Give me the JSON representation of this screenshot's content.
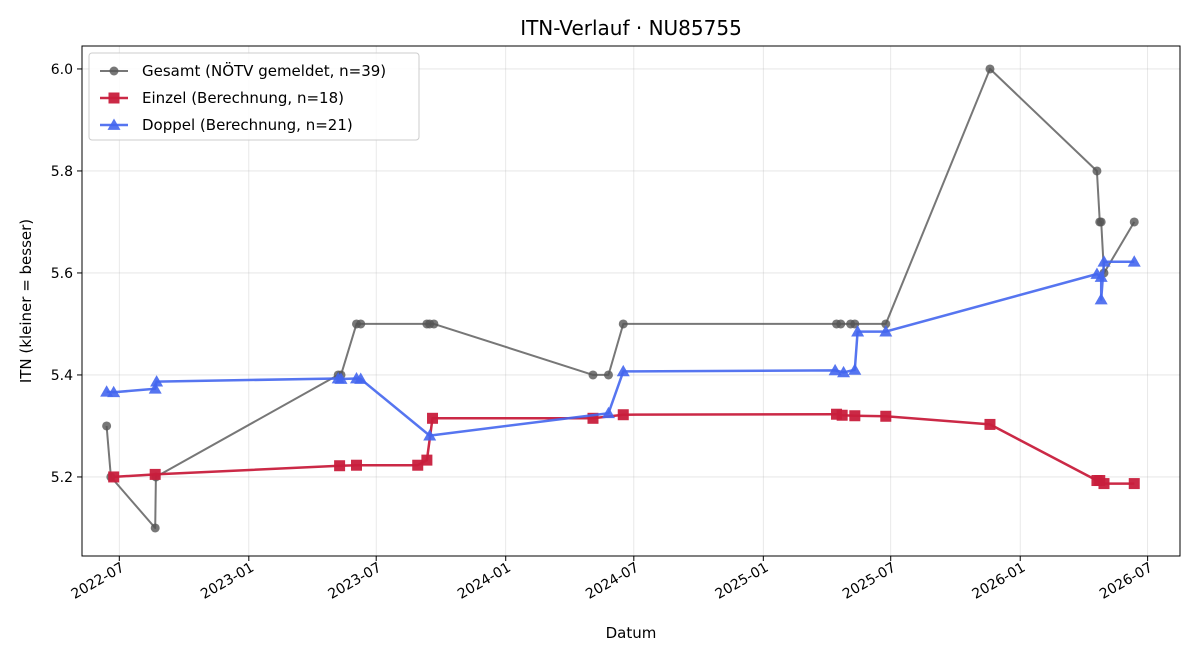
{
  "chart_data": {
    "type": "line",
    "title": "ITN-Verlauf · NU85755",
    "xlabel": "Datum",
    "ylabel": "ITN  (kleiner = besser)",
    "x_axis": "date",
    "xlim": [
      "2022-05-09",
      "2026-08-16"
    ],
    "ylim": [
      5.045,
      6.045
    ],
    "x_ticks": [
      "2022-07",
      "2023-01",
      "2023-07",
      "2024-01",
      "2024-07",
      "2025-01",
      "2025-07",
      "2026-01",
      "2026-07"
    ],
    "x_tick_dates": [
      "2022-07-01",
      "2023-01-01",
      "2023-07-01",
      "2024-01-01",
      "2024-07-01",
      "2025-01-01",
      "2025-07-01",
      "2026-01-01",
      "2026-07-01"
    ],
    "y_ticks": [
      5.2,
      5.4,
      5.6,
      5.8,
      6.0
    ],
    "y_tick_labels": [
      "5.2",
      "5.4",
      "5.6",
      "5.8",
      "6.0"
    ],
    "grid": true,
    "legend_position": "top-left",
    "series": [
      {
        "name": "Gesamt (NÖTV gemeldet, n=39)",
        "color": "#555555",
        "marker": "circle",
        "points": [
          {
            "x": "2022-06-13",
            "y": 5.3
          },
          {
            "x": "2022-06-19",
            "y": 5.2
          },
          {
            "x": "2022-08-21",
            "y": 5.1
          },
          {
            "x": "2022-08-22",
            "y": 5.2
          },
          {
            "x": "2023-05-08",
            "y": 5.4
          },
          {
            "x": "2023-05-12",
            "y": 5.4
          },
          {
            "x": "2023-06-03",
            "y": 5.5
          },
          {
            "x": "2023-06-09",
            "y": 5.5
          },
          {
            "x": "2023-09-11",
            "y": 5.5
          },
          {
            "x": "2023-09-15",
            "y": 5.5
          },
          {
            "x": "2023-09-21",
            "y": 5.5
          },
          {
            "x": "2024-05-04",
            "y": 5.4
          },
          {
            "x": "2024-05-26",
            "y": 5.4
          },
          {
            "x": "2024-06-16",
            "y": 5.5
          },
          {
            "x": "2025-04-15",
            "y": 5.5
          },
          {
            "x": "2025-04-21",
            "y": 5.5
          },
          {
            "x": "2025-05-05",
            "y": 5.5
          },
          {
            "x": "2025-05-11",
            "y": 5.5
          },
          {
            "x": "2025-06-24",
            "y": 5.5
          },
          {
            "x": "2025-11-19",
            "y": 6.0
          },
          {
            "x": "2026-04-20",
            "y": 5.8
          },
          {
            "x": "2026-04-24",
            "y": 5.7
          },
          {
            "x": "2026-04-26",
            "y": 5.7
          },
          {
            "x": "2026-04-30",
            "y": 5.6
          },
          {
            "x": "2026-06-12",
            "y": 5.7
          }
        ]
      },
      {
        "name": "Einzel (Berechnung, n=18)",
        "color": "#c81d3c",
        "marker": "square",
        "points": [
          {
            "x": "2022-06-23",
            "y": 5.2
          },
          {
            "x": "2022-08-21",
            "y": 5.205
          },
          {
            "x": "2023-05-10",
            "y": 5.222
          },
          {
            "x": "2023-06-03",
            "y": 5.223
          },
          {
            "x": "2023-08-29",
            "y": 5.223
          },
          {
            "x": "2023-09-11",
            "y": 5.233
          },
          {
            "x": "2023-09-19",
            "y": 5.315
          },
          {
            "x": "2024-05-04",
            "y": 5.315
          },
          {
            "x": "2024-06-16",
            "y": 5.322
          },
          {
            "x": "2025-04-15",
            "y": 5.323
          },
          {
            "x": "2025-04-23",
            "y": 5.321
          },
          {
            "x": "2025-05-11",
            "y": 5.32
          },
          {
            "x": "2025-06-24",
            "y": 5.319
          },
          {
            "x": "2025-11-19",
            "y": 5.303
          },
          {
            "x": "2026-04-20",
            "y": 5.193
          },
          {
            "x": "2026-04-24",
            "y": 5.193
          },
          {
            "x": "2026-04-30",
            "y": 5.187
          },
          {
            "x": "2026-06-12",
            "y": 5.187
          }
        ]
      },
      {
        "name": "Doppel (Berechnung, n=21)",
        "color": "#4466ee",
        "marker": "triangle",
        "points": [
          {
            "x": "2022-06-13",
            "y": 5.367
          },
          {
            "x": "2022-06-23",
            "y": 5.366
          },
          {
            "x": "2022-08-21",
            "y": 5.373
          },
          {
            "x": "2022-08-23",
            "y": 5.387
          },
          {
            "x": "2023-05-08",
            "y": 5.393
          },
          {
            "x": "2023-05-12",
            "y": 5.392
          },
          {
            "x": "2023-06-03",
            "y": 5.393
          },
          {
            "x": "2023-06-09",
            "y": 5.392
          },
          {
            "x": "2023-09-15",
            "y": 5.281
          },
          {
            "x": "2024-05-26",
            "y": 5.325
          },
          {
            "x": "2024-06-16",
            "y": 5.407
          },
          {
            "x": "2025-04-13",
            "y": 5.409
          },
          {
            "x": "2025-04-25",
            "y": 5.405
          },
          {
            "x": "2025-05-11",
            "y": 5.41
          },
          {
            "x": "2025-05-15",
            "y": 5.485
          },
          {
            "x": "2025-06-24",
            "y": 5.485
          },
          {
            "x": "2026-04-20",
            "y": 5.598
          },
          {
            "x": "2026-04-26",
            "y": 5.592
          },
          {
            "x": "2026-04-26",
            "y": 5.548
          },
          {
            "x": "2026-04-30",
            "y": 5.622
          },
          {
            "x": "2026-06-12",
            "y": 5.622
          }
        ]
      }
    ]
  }
}
